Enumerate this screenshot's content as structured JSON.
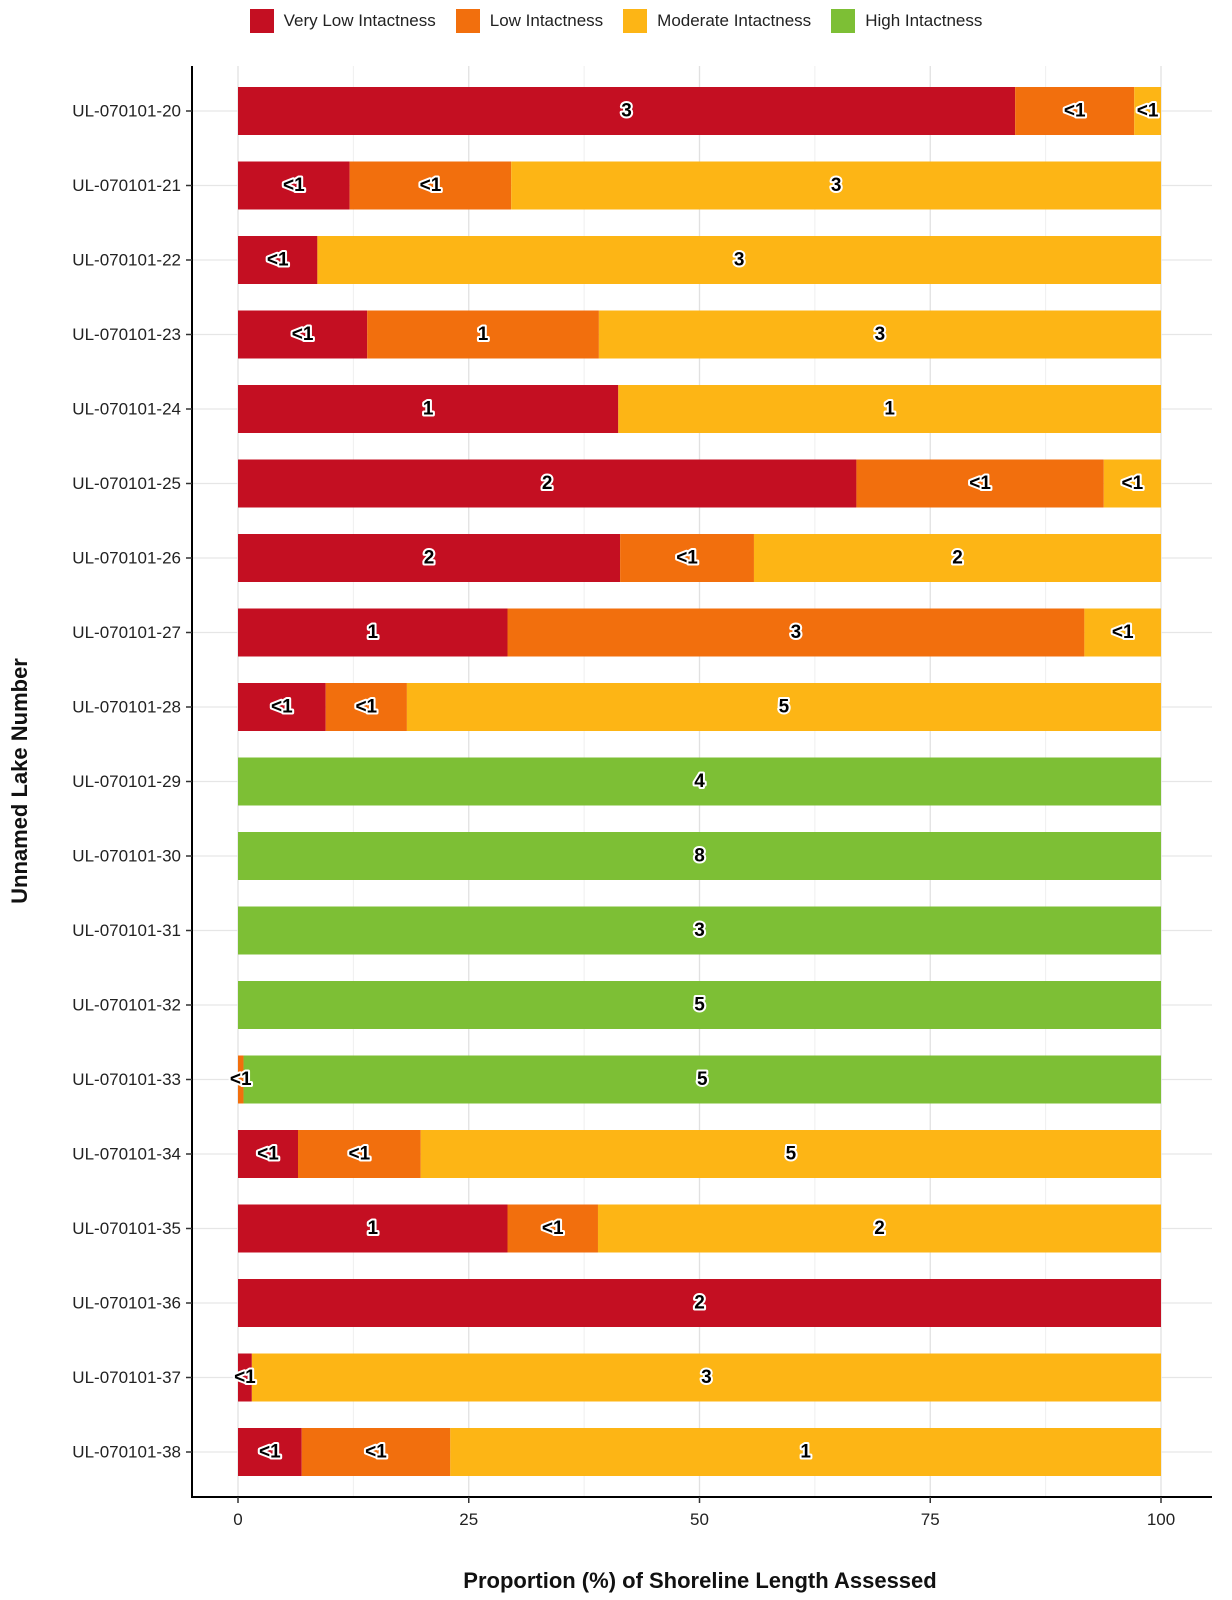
{
  "chart_data": {
    "type": "bar",
    "orientation": "horizontal",
    "stacked": true,
    "title": "",
    "xlabel": "Proportion (%) of Shoreline Length Assessed",
    "ylabel": "Unnamed Lake Number",
    "xlim": [
      0,
      100
    ],
    "xticks": [
      "0",
      "25",
      "50",
      "75",
      "100"
    ],
    "grid": true,
    "legend_position": "top",
    "categories": [
      "UL-070101-20",
      "UL-070101-21",
      "UL-070101-22",
      "UL-070101-23",
      "UL-070101-24",
      "UL-070101-25",
      "UL-070101-26",
      "UL-070101-27",
      "UL-070101-28",
      "UL-070101-29",
      "UL-070101-30",
      "UL-070101-31",
      "UL-070101-32",
      "UL-070101-33",
      "UL-070101-34",
      "UL-070101-35",
      "UL-070101-36",
      "UL-070101-37",
      "UL-070101-38"
    ],
    "series": [
      {
        "name": "Very Low Intactness",
        "color": "#C40F22",
        "values": [
          84.2,
          12.1,
          8.6,
          14.0,
          41.2,
          67.0,
          41.4,
          29.2,
          9.5,
          0,
          0,
          0,
          0,
          0,
          6.5,
          29.2,
          100,
          1.5,
          6.9
        ],
        "labels": [
          "3",
          "<1",
          "<1",
          "<1",
          "1",
          "2",
          "2",
          "1",
          "<1",
          "",
          "",
          "",
          "",
          "",
          "<1",
          "1",
          "2",
          "<1",
          "<1"
        ]
      },
      {
        "name": "Low Intactness",
        "color": "#F26F0D",
        "values": [
          12.9,
          17.5,
          0,
          25.1,
          0,
          26.8,
          14.5,
          62.5,
          8.8,
          0,
          0,
          0,
          0,
          0.6,
          13.3,
          9.8,
          0,
          0,
          16.1
        ],
        "labels": [
          "<1",
          "<1",
          "",
          "1",
          "",
          "<1",
          "<1",
          "3",
          "<1",
          "",
          "",
          "",
          "",
          "<1",
          "<1",
          "<1",
          "",
          "",
          "<1"
        ]
      },
      {
        "name": "Moderate Intactness",
        "color": "#FDB515",
        "values": [
          2.9,
          70.4,
          91.4,
          60.9,
          58.8,
          6.2,
          44.1,
          8.3,
          81.7,
          0,
          0,
          0,
          0,
          0,
          80.2,
          61.0,
          0,
          98.5,
          77.0
        ],
        "labels": [
          "<1",
          "3",
          "3",
          "3",
          "1",
          "<1",
          "2",
          "<1",
          "5",
          "",
          "",
          "",
          "",
          "",
          "5",
          "2",
          "",
          "3",
          "1"
        ]
      },
      {
        "name": "High Intactness",
        "color": "#7DBF35",
        "values": [
          0,
          0,
          0,
          0,
          0,
          0,
          0,
          0,
          0,
          100,
          100,
          100,
          100,
          99.4,
          0,
          0,
          0,
          0,
          0
        ],
        "labels": [
          "",
          "",
          "",
          "",
          "",
          "",
          "",
          "",
          "",
          "4",
          "8",
          "3",
          "5",
          "5",
          "",
          "",
          "",
          "",
          ""
        ]
      }
    ]
  }
}
